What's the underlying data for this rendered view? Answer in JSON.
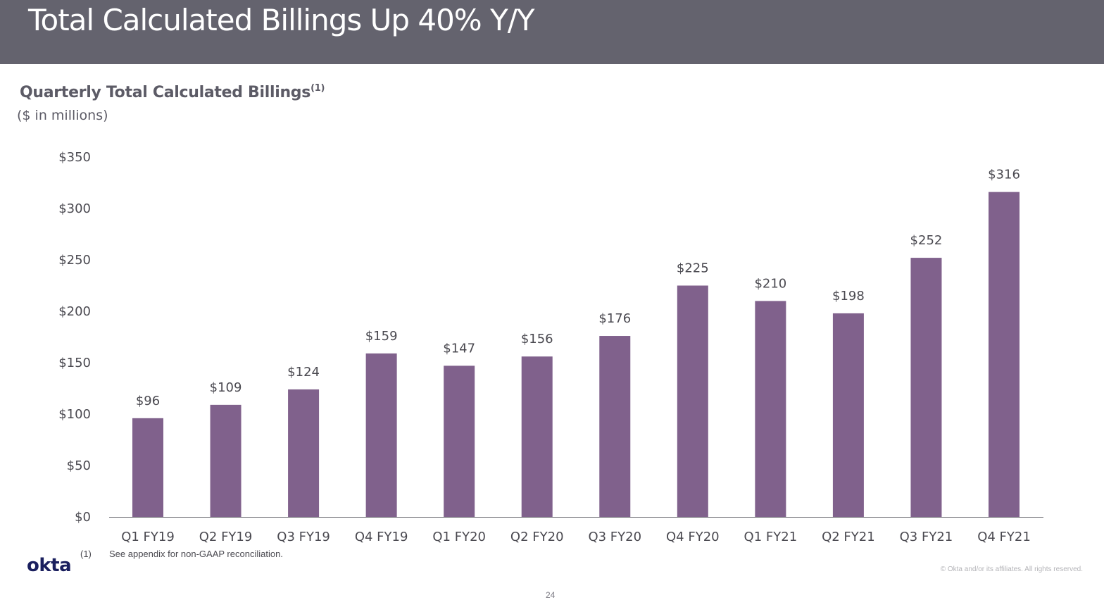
{
  "header": {
    "title": "Total Calculated Billings Up 40% Y/Y"
  },
  "chart_data": {
    "type": "bar",
    "title": "Quarterly Total Calculated Billings",
    "title_superscript": "(1)",
    "subtitle": "($ in millions)",
    "xlabel": "",
    "ylabel": "",
    "categories": [
      "Q1 FY19",
      "Q2 FY19",
      "Q3 FY19",
      "Q4 FY19",
      "Q1 FY20",
      "Q2 FY20",
      "Q3 FY20",
      "Q4 FY20",
      "Q1 FY21",
      "Q2 FY21",
      "Q3 FY21",
      "Q4 FY21"
    ],
    "values": [
      96,
      109,
      124,
      159,
      147,
      156,
      176,
      225,
      210,
      198,
      252,
      316
    ],
    "data_labels": [
      "$96",
      "$109",
      "$124",
      "$159",
      "$147",
      "$156",
      "$176",
      "$225",
      "$210",
      "$198",
      "$252",
      "$316"
    ],
    "ylim": [
      0,
      350
    ],
    "yticks": [
      0,
      50,
      100,
      150,
      200,
      250,
      300,
      350
    ],
    "ytick_labels": [
      "$0",
      "$50",
      "$100",
      "$150",
      "$200",
      "$250",
      "$300",
      "$350"
    ],
    "grid": false,
    "legend": "none",
    "bar_color": "#80618c"
  },
  "footnote": {
    "number": "(1)",
    "text": "See appendix for non-GAAP reconciliation."
  },
  "logo": {
    "text": "okta"
  },
  "copyright": "© Okta and/or its affiliates. All rights reserved.",
  "page_number": "24",
  "colors": {
    "header_bg": "#64636e",
    "title_text": "#5c5b66",
    "bar": "#80618c"
  }
}
